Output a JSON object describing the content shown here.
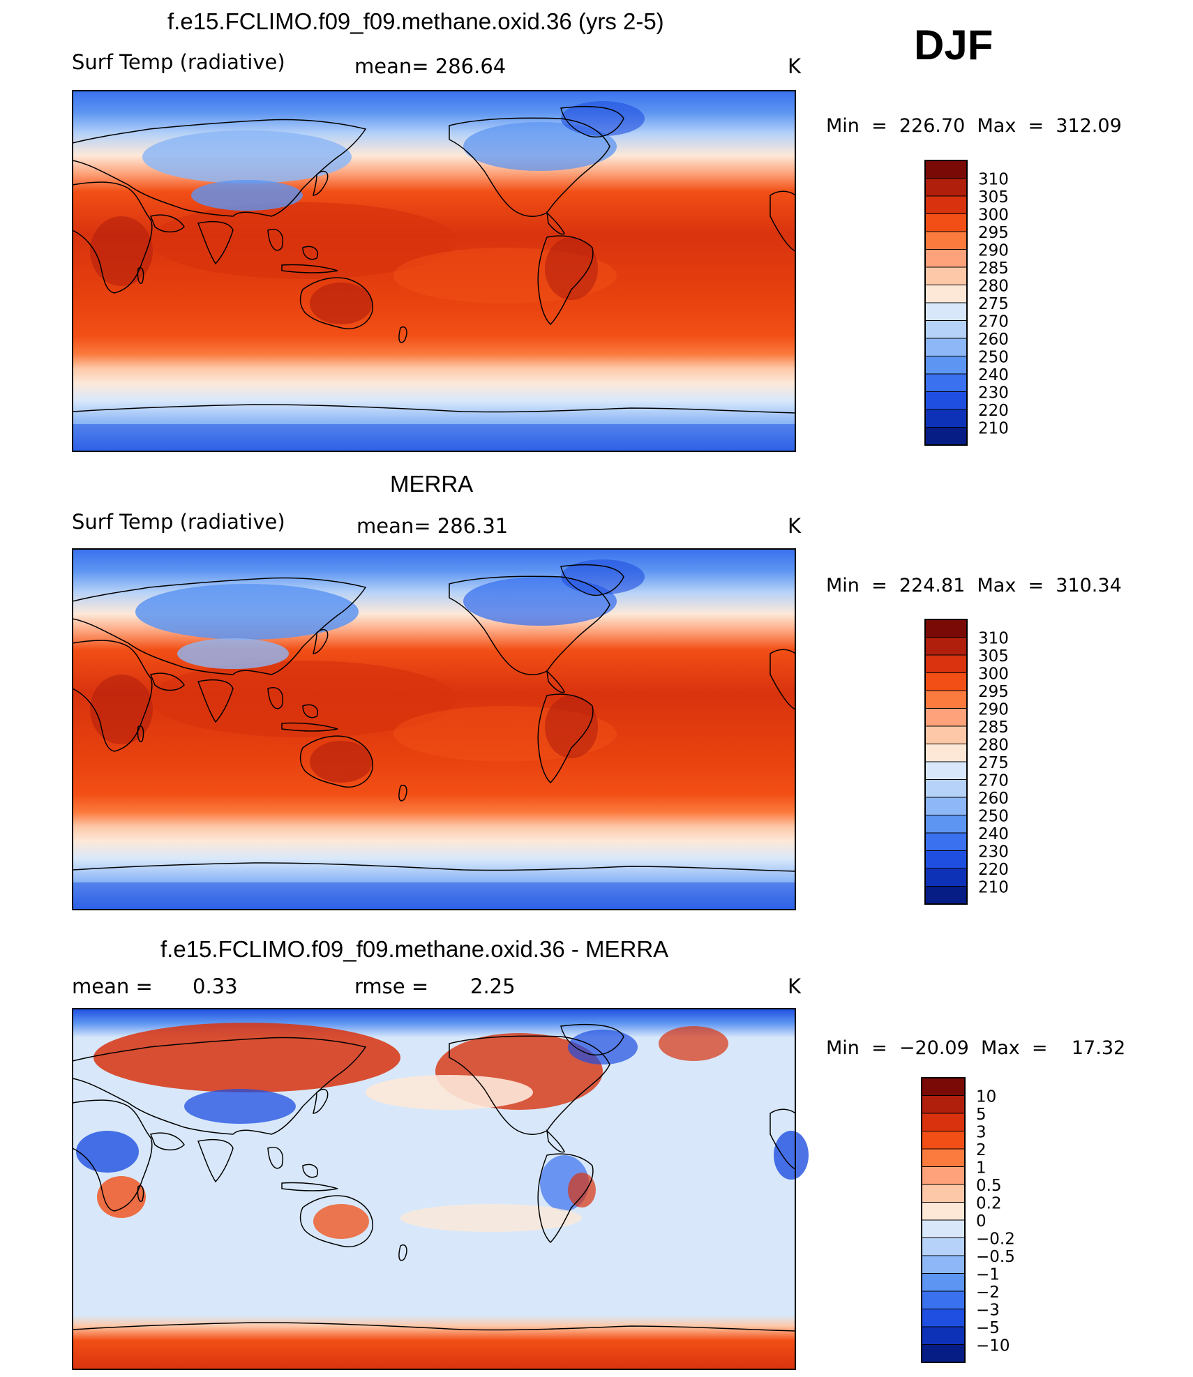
{
  "season": "DJF",
  "units": "K",
  "panels": [
    {
      "title": "f.e15.FCLIMO.f09_f09.methane.oxid.36 (yrs 2-5)",
      "variable": "Surf Temp (radiative)",
      "stat_text": "mean= 286.64",
      "units": "K",
      "minmax": "Min  =  226.70  Max  =  312.09"
    },
    {
      "title": "MERRA",
      "variable": "Surf Temp (radiative)",
      "stat_text": "mean= 286.31",
      "units": "K",
      "minmax": "Min  =  224.81  Max  =  310.34"
    },
    {
      "title": "f.e15.FCLIMO.f09_f09.methane.oxid.36 - MERRA",
      "mean_label": "mean =",
      "mean_value": "0.33",
      "rmse_label": "rmse =",
      "rmse_value": "2.25",
      "units": "K",
      "minmax": "Min  =  −20.09  Max  =    17.32"
    }
  ],
  "colorbar_abs": {
    "labels": [
      "310",
      "305",
      "300",
      "295",
      "290",
      "285",
      "280",
      "275",
      "270",
      "260",
      "250",
      "240",
      "230",
      "220",
      "210"
    ],
    "colors": [
      "#7a0a06",
      "#b01e0c",
      "#d8330e",
      "#f24f16",
      "#fb7a3e",
      "#fda27a",
      "#fdc8a8",
      "#fde8d8",
      "#d8e8fa",
      "#b6d2f8",
      "#8db7f6",
      "#5d95f2",
      "#3a71ee",
      "#1f4fe0",
      "#0d32b8",
      "#061d86"
    ]
  },
  "colorbar_diff": {
    "labels": [
      "10",
      "5",
      "3",
      "2",
      "1",
      "0.5",
      "0.2",
      "0",
      "−0.2",
      "−0.5",
      "−1",
      "−2",
      "−3",
      "−5",
      "−10"
    ],
    "colors": [
      "#7a0a06",
      "#b01e0c",
      "#d8330e",
      "#f24f16",
      "#fb7a3e",
      "#fda27a",
      "#fdc8a8",
      "#fde8d8",
      "#d8e8fa",
      "#b6d2f8",
      "#8db7f6",
      "#5d95f2",
      "#3a71ee",
      "#1f4fe0",
      "#0d32b8",
      "#061d86"
    ]
  }
}
